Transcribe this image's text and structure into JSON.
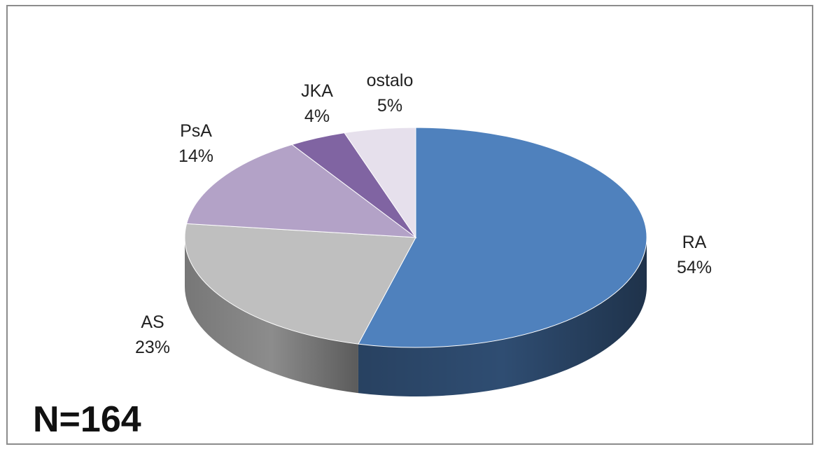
{
  "chart_data": {
    "type": "pie",
    "style": "3d",
    "categories": [
      "RA",
      "AS",
      "PsA",
      "JKA",
      "ostalo"
    ],
    "values": [
      54,
      23,
      14,
      4,
      5
    ],
    "value_labels": [
      "54%",
      "23%",
      "14%",
      "4%",
      "5%"
    ],
    "colors": [
      "#4f81bd",
      "#bfbfbf",
      "#b3a2c7",
      "#8064a2",
      "#e6e0ec"
    ],
    "side_colors": [
      "#2f4d72",
      "#8c8c8c",
      "#8a7a9e",
      "#5e4a7a",
      "#b9b3bf"
    ],
    "annotation": "N=164",
    "legend": "none"
  }
}
